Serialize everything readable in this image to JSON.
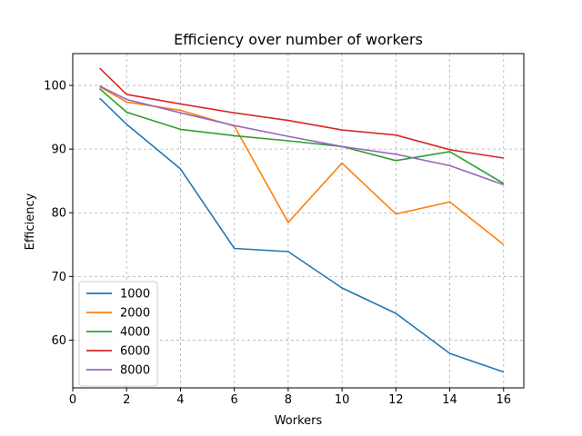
{
  "chart_data": {
    "type": "line",
    "title": "Efficiency over number of workers",
    "xlabel": "Workers",
    "ylabel": "Efficiency",
    "xlim": [
      0,
      16.75
    ],
    "ylim": [
      52.5,
      105
    ],
    "xticks": [
      0,
      2,
      4,
      6,
      8,
      10,
      12,
      14,
      16
    ],
    "yticks": [
      60,
      70,
      80,
      90,
      100
    ],
    "grid": true,
    "legend_position": "lower-left",
    "x": [
      1,
      2,
      4,
      6,
      8,
      10,
      12,
      14,
      16
    ],
    "series": [
      {
        "name": "1000",
        "color": "#1f77b4",
        "values": [
          98.0,
          93.9,
          86.9,
          74.4,
          73.9,
          68.2,
          64.2,
          57.9,
          55.0
        ]
      },
      {
        "name": "2000",
        "color": "#ff7f0e",
        "values": [
          99.8,
          97.4,
          96.1,
          93.6,
          78.5,
          87.8,
          79.8,
          81.7,
          75.0
        ]
      },
      {
        "name": "4000",
        "color": "#2ca02c",
        "values": [
          99.5,
          95.8,
          93.1,
          92.1,
          91.3,
          90.4,
          88.2,
          89.6,
          84.6
        ]
      },
      {
        "name": "6000",
        "color": "#d62728",
        "values": [
          102.7,
          98.6,
          97.1,
          95.7,
          94.5,
          93.0,
          92.2,
          89.9,
          88.6
        ]
      },
      {
        "name": "8000",
        "color": "#9467bd",
        "values": [
          99.9,
          97.8,
          95.7,
          93.7,
          92.0,
          90.4,
          89.2,
          87.4,
          84.4
        ]
      }
    ]
  }
}
